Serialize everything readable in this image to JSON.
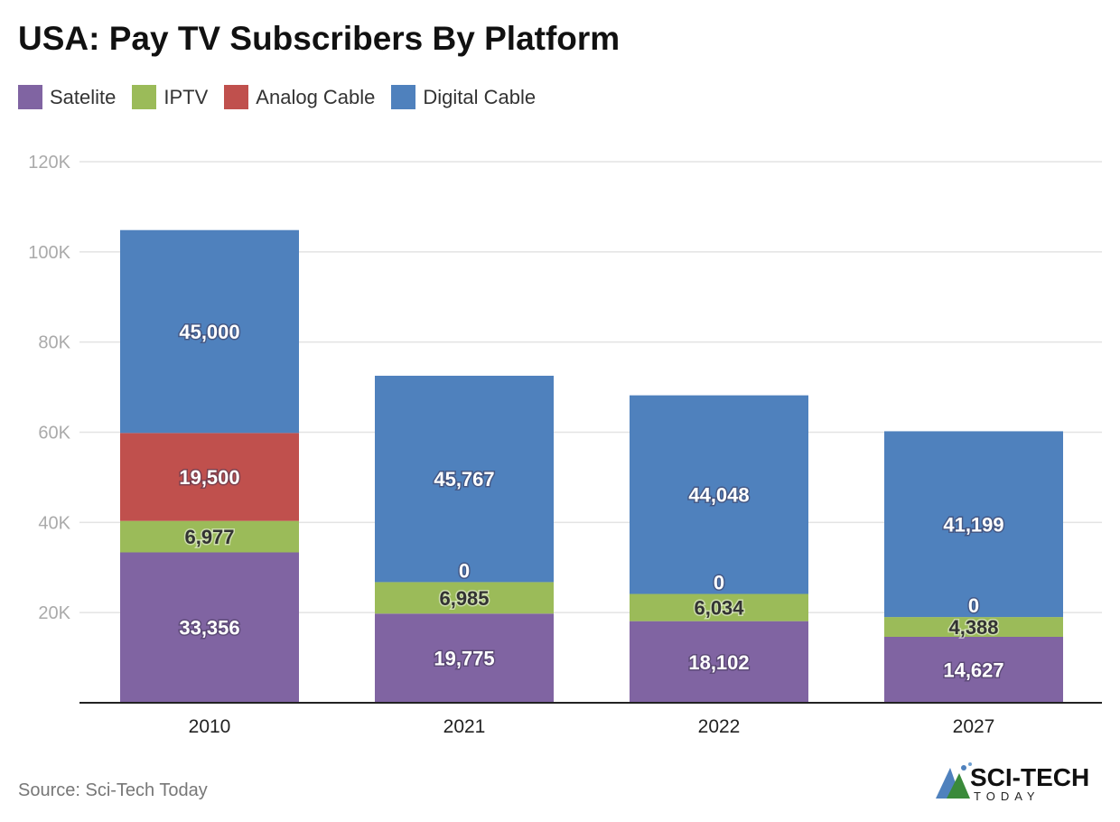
{
  "chart_data": {
    "type": "bar",
    "stacked": true,
    "title": "USA: Pay TV Subscribers By Platform",
    "categories": [
      "2010",
      "2021",
      "2022",
      "2027"
    ],
    "series": [
      {
        "name": "Satelite",
        "color": "#8064a2",
        "label_color": "#ffffff",
        "values": [
          33356,
          19775,
          18102,
          14627
        ]
      },
      {
        "name": "IPTV",
        "color": "#9bbb59",
        "label_color": "#333333",
        "values": [
          6977,
          6985,
          6034,
          4388
        ]
      },
      {
        "name": "Analog Cable",
        "color": "#c0504d",
        "label_color": "#ffffff",
        "values": [
          19500,
          0,
          0,
          0
        ]
      },
      {
        "name": "Digital Cable",
        "color": "#4f81bd",
        "label_color": "#ffffff",
        "values": [
          45000,
          45767,
          44048,
          41199
        ]
      }
    ],
    "ylim": [
      0,
      120000
    ],
    "yticks": [
      20000,
      40000,
      60000,
      80000,
      100000,
      120000
    ],
    "ytick_labels": [
      "20K",
      "40K",
      "60K",
      "80K",
      "100K",
      "120K"
    ],
    "grid": true,
    "legend_position": "top-left",
    "xlabel": "",
    "ylabel": ""
  },
  "source": "Source: Sci-Tech Today",
  "logo": {
    "text": "SCI-TECH",
    "subtext": "TODAY"
  }
}
